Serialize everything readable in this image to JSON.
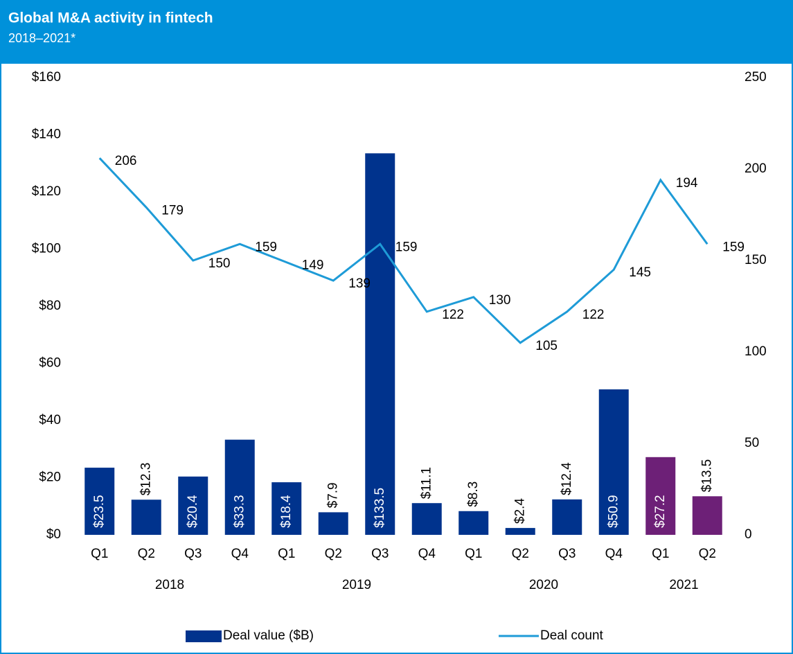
{
  "chart_data": {
    "type": "bar_line",
    "title": "Global M&A activity in fintech",
    "subtitle": "2018–2021*",
    "categories": [
      "Q1",
      "Q2",
      "Q3",
      "Q4",
      "Q1",
      "Q2",
      "Q3",
      "Q4",
      "Q1",
      "Q2",
      "Q3",
      "Q4",
      "Q1",
      "Q2"
    ],
    "groups": [
      "2018",
      "2019",
      "2020",
      "2021"
    ],
    "series": [
      {
        "name": "Deal value ($B)",
        "type": "bar",
        "color": "#00338d",
        "colors": [
          "#00338d",
          "#00338d",
          "#00338d",
          "#00338d",
          "#00338d",
          "#00338d",
          "#00338d",
          "#00338d",
          "#00338d",
          "#00338d",
          "#00338d",
          "#00338d",
          "#6d2077",
          "#6d2077"
        ],
        "values": [
          23.5,
          12.3,
          20.4,
          33.3,
          18.4,
          7.9,
          133.5,
          11.1,
          8.3,
          2.4,
          12.4,
          50.9,
          27.2,
          13.5
        ],
        "value_labels": [
          "$23.5",
          "$12.3",
          "$20.4",
          "$33.3",
          "$18.4",
          "$7.9",
          "$133.5",
          "$11.1",
          "$8.3",
          "$2.4",
          "$12.4",
          "$50.9",
          "$27.2",
          "$13.5"
        ]
      },
      {
        "name": "Deal count",
        "type": "line",
        "axis": "y2",
        "color": "#1e9bd7",
        "values": [
          206,
          179,
          150,
          159,
          149,
          139,
          159,
          122,
          130,
          105,
          122,
          145,
          194,
          159
        ]
      }
    ],
    "ylim": [
      0,
      160
    ],
    "yticks": [
      {
        "value": 0,
        "label": "$0"
      },
      {
        "value": 20,
        "label": "$20"
      },
      {
        "value": 40,
        "label": "$40"
      },
      {
        "value": 60,
        "label": "$60"
      },
      {
        "value": 80,
        "label": "$80"
      },
      {
        "value": 100,
        "label": "$100"
      },
      {
        "value": 120,
        "label": "$120"
      },
      {
        "value": 140,
        "label": "$140"
      },
      {
        "value": 160,
        "label": "$160"
      }
    ],
    "y2lim": [
      0,
      250
    ],
    "y2ticks": [
      0,
      50,
      100,
      150,
      200,
      250
    ],
    "grid": false,
    "legend": "bottom"
  }
}
